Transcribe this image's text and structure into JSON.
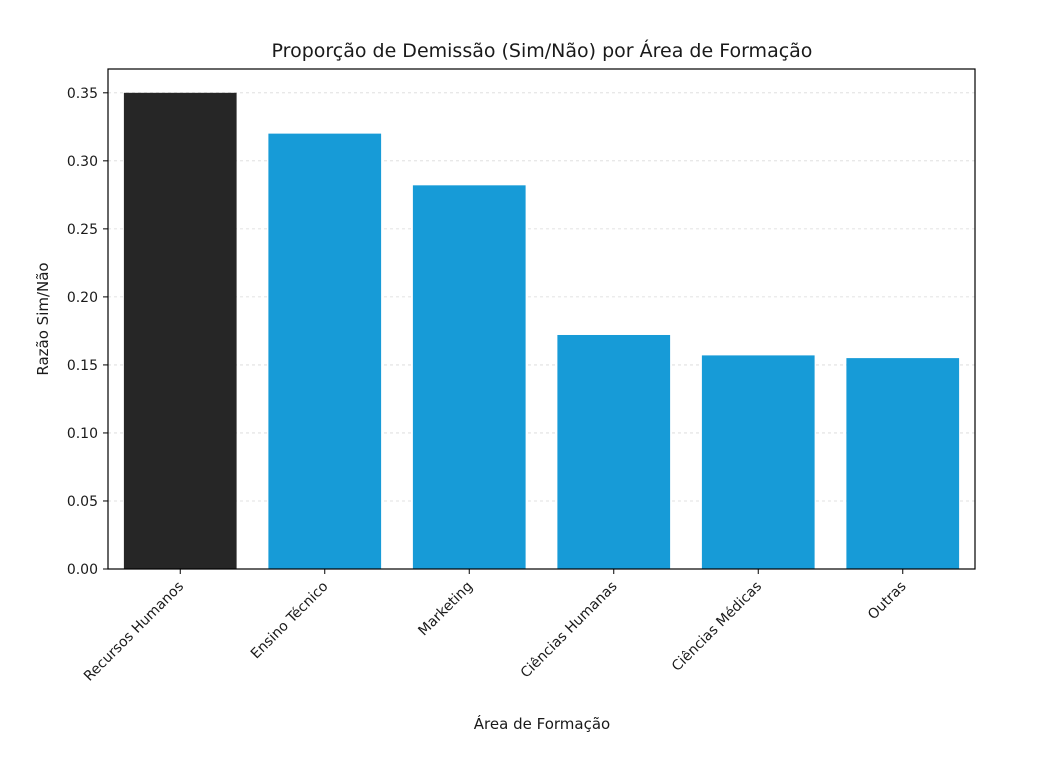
{
  "chart_data": {
    "type": "bar",
    "title": "Proporção de Demissão (Sim/Não) por Área de Formação",
    "xlabel": "Área de Formação",
    "ylabel": "Razão Sim/Não",
    "categories": [
      "Recursos Humanos",
      "Ensino Técnico",
      "Marketing",
      "Ciências Humanas",
      "Ciências Médicas",
      "Outras"
    ],
    "values": [
      0.35,
      0.32,
      0.282,
      0.172,
      0.157,
      0.155
    ],
    "bar_colors": [
      "#262626",
      "#179bd7",
      "#179bd7",
      "#179bd7",
      "#179bd7",
      "#179bd7"
    ],
    "ylim": [
      0,
      0.3675
    ],
    "yticks": [
      "0.00",
      "0.05",
      "0.10",
      "0.15",
      "0.20",
      "0.25",
      "0.30",
      "0.35"
    ],
    "grid": "y, dashed",
    "legend": "none"
  }
}
